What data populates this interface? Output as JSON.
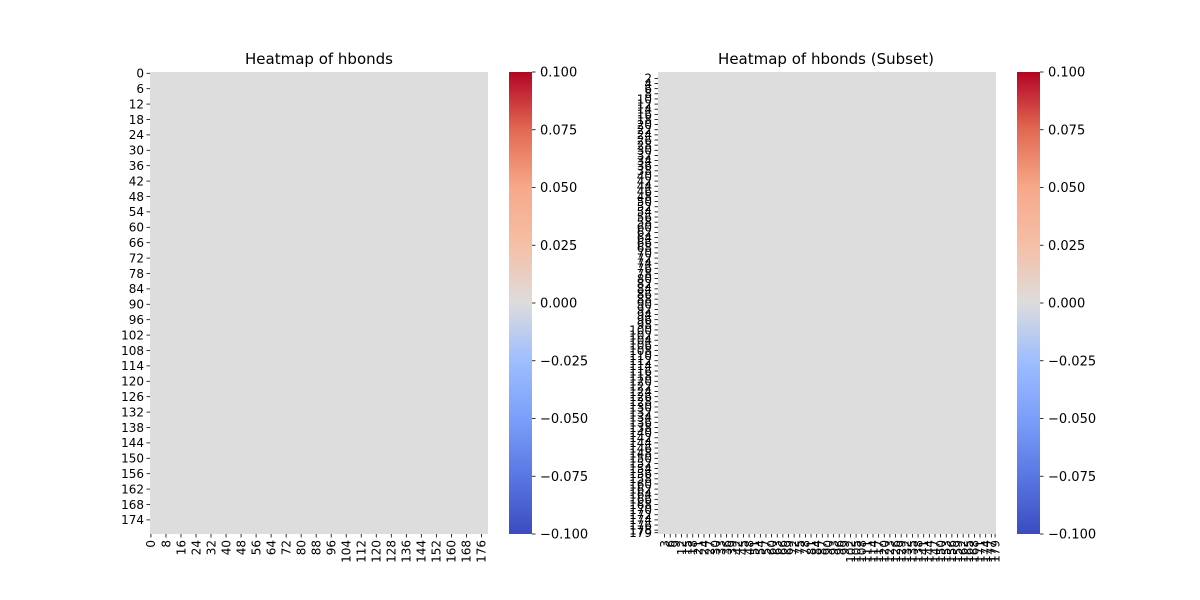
{
  "chart_data": [
    {
      "type": "heatmap",
      "title": "Heatmap of hbonds",
      "rows": 180,
      "cols": 180,
      "cell_value": 0,
      "cell_color": "#dddddd",
      "y_tick_labels": [
        "0",
        "6",
        "12",
        "18",
        "24",
        "30",
        "36",
        "42",
        "48",
        "54",
        "60",
        "66",
        "72",
        "78",
        "84",
        "90",
        "96",
        "102",
        "108",
        "114",
        "120",
        "126",
        "132",
        "138",
        "144",
        "150",
        "156",
        "162",
        "168",
        "174"
      ],
      "x_tick_labels": [
        "0",
        "8",
        "16",
        "24",
        "32",
        "40",
        "48",
        "56",
        "64",
        "72",
        "80",
        "88",
        "96",
        "104",
        "112",
        "120",
        "128",
        "136",
        "144",
        "152",
        "160",
        "168",
        "176"
      ],
      "colorbar": {
        "colormap": "coolwarm",
        "vmin": -0.1,
        "vmax": 0.1,
        "tick_labels": [
          "0.100",
          "0.075",
          "0.050",
          "0.025",
          "0.000",
          "−0.025",
          "−0.050",
          "−0.075",
          "−0.100"
        ]
      }
    },
    {
      "type": "heatmap",
      "title": "Heatmap of hbonds (Subset)",
      "rows": 180,
      "cols": 180,
      "cell_value": 0,
      "cell_color": "#dddddd",
      "y_tick_labels": [
        "2",
        "4",
        "6",
        "8",
        "10",
        "12",
        "14",
        "16",
        "18",
        "20",
        "22",
        "24",
        "26",
        "28",
        "30",
        "32",
        "34",
        "36",
        "38",
        "40",
        "42",
        "44",
        "46",
        "48",
        "50",
        "52",
        "54",
        "56",
        "58",
        "60",
        "62",
        "64",
        "66",
        "68",
        "70",
        "72",
        "74",
        "76",
        "78",
        "80",
        "82",
        "84",
        "86",
        "88",
        "90",
        "92",
        "94",
        "96",
        "98",
        "100",
        "102",
        "104",
        "106",
        "108",
        "110",
        "112",
        "114",
        "116",
        "118",
        "120",
        "122",
        "124",
        "126",
        "128",
        "130",
        "132",
        "134",
        "136",
        "138",
        "140",
        "142",
        "144",
        "146",
        "148",
        "150",
        "152",
        "154",
        "156",
        "158",
        "160",
        "162",
        "164",
        "166",
        "168",
        "170",
        "172",
        "174",
        "176",
        "178",
        "179"
      ],
      "x_tick_labels": [
        "3",
        "6",
        "9",
        "12",
        "15",
        "18",
        "21",
        "24",
        "27",
        "30",
        "33",
        "36",
        "39",
        "42",
        "45",
        "48",
        "51",
        "54",
        "57",
        "60",
        "63",
        "66",
        "69",
        "72",
        "75",
        "78",
        "81",
        "84",
        "87",
        "90",
        "93",
        "96",
        "99",
        "102",
        "105",
        "108",
        "111",
        "114",
        "117",
        "120",
        "123",
        "126",
        "129",
        "132",
        "135",
        "138",
        "141",
        "144",
        "147",
        "150",
        "153",
        "156",
        "159",
        "162",
        "165",
        "168",
        "171",
        "174",
        "177",
        "179"
      ],
      "colorbar": {
        "colormap": "coolwarm",
        "vmin": -0.1,
        "vmax": 0.1,
        "tick_labels": [
          "0.100",
          "0.075",
          "0.050",
          "0.025",
          "0.000",
          "−0.025",
          "−0.050",
          "−0.075",
          "−0.100"
        ]
      }
    }
  ]
}
